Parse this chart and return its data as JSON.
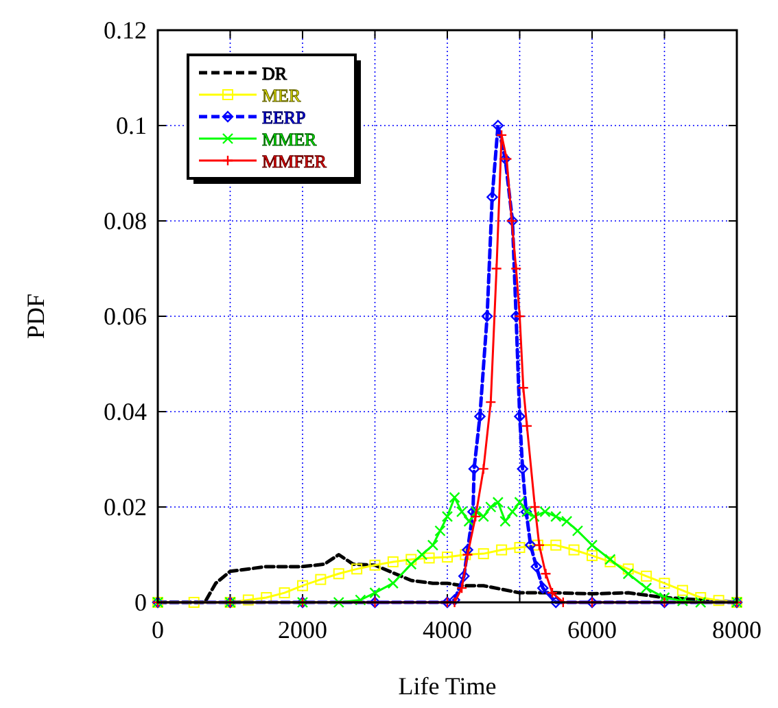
{
  "chart_data": {
    "type": "line",
    "xlabel": "Life Time",
    "ylabel": "PDF",
    "xlim": [
      0,
      8000
    ],
    "ylim": [
      0,
      0.12
    ],
    "xticks": [
      0,
      {
        "value": 1000,
        "label": null
      },
      2000,
      {
        "value": 3000,
        "label": null
      },
      4000,
      {
        "value": 5000,
        "label": null
      },
      6000,
      {
        "value": 7000,
        "label": null
      },
      8000
    ],
    "yticks": [
      0,
      0.02,
      0.04,
      0.06,
      0.08,
      0.1,
      0.12
    ],
    "grid": true,
    "legend": "top left",
    "series": [
      {
        "name": "DR",
        "color": "#000000",
        "marker": "none",
        "line_style": "dashed",
        "x": [
          0,
          500,
          650,
          800,
          1000,
          1500,
          2000,
          2300,
          2500,
          2700,
          3000,
          3500,
          3800,
          4000,
          4200,
          4500,
          5000,
          5500,
          6000,
          6500,
          7000,
          7500,
          8000
        ],
        "values": [
          0,
          0,
          0,
          0.004,
          0.0065,
          0.0075,
          0.0075,
          0.008,
          0.01,
          0.008,
          0.0078,
          0.0046,
          0.004,
          0.004,
          0.0035,
          0.0035,
          0.002,
          0.002,
          0.0018,
          0.002,
          0.001,
          0.0005,
          0
        ]
      },
      {
        "name": "MER",
        "color": "#ffff00",
        "marker": "square",
        "line_style": "solid",
        "x": [
          0,
          500,
          1000,
          1250,
          1500,
          1750,
          2000,
          2250,
          2500,
          2750,
          3000,
          3250,
          3500,
          3750,
          4000,
          4250,
          4500,
          4750,
          5000,
          5250,
          5500,
          5750,
          6000,
          6250,
          6500,
          6750,
          7000,
          7250,
          7500,
          7750,
          8000
        ],
        "values": [
          0,
          0,
          0,
          0.0005,
          0.001,
          0.002,
          0.0035,
          0.0048,
          0.006,
          0.007,
          0.0078,
          0.0085,
          0.009,
          0.0093,
          0.0095,
          0.01,
          0.0102,
          0.011,
          0.0115,
          0.012,
          0.012,
          0.011,
          0.0098,
          0.0085,
          0.007,
          0.0055,
          0.004,
          0.0025,
          0.001,
          0.0004,
          0
        ]
      },
      {
        "name": "EERP",
        "color": "#0000ff",
        "marker": "diamond",
        "line_style": "dashed",
        "x": [
          0,
          1000,
          2000,
          3000,
          4000,
          4100,
          4230,
          4280,
          4355,
          4370,
          4450,
          4550,
          4620,
          4700,
          4800,
          4900,
          4950,
          5000,
          5040,
          5090,
          5150,
          5230,
          5320,
          5500,
          6000,
          7000,
          8000
        ],
        "values": [
          0,
          0,
          0,
          0,
          0,
          0.0005,
          0.0055,
          0.011,
          0.019,
          0.028,
          0.039,
          0.06,
          0.085,
          0.1,
          0.093,
          0.08,
          0.06,
          0.039,
          0.028,
          0.019,
          0.012,
          0.0075,
          0.003,
          0,
          0,
          0,
          0
        ]
      },
      {
        "name": "MMER",
        "color": "#00ff00",
        "marker": "cross",
        "line_style": "solid",
        "x": [
          0,
          1000,
          2000,
          2500,
          2800,
          3000,
          3250,
          3500,
          3650,
          3800,
          3900,
          4000,
          4100,
          4200,
          4300,
          4400,
          4500,
          4600,
          4700,
          4800,
          4900,
          5000,
          5100,
          5200,
          5350,
          5500,
          5650,
          5800,
          6000,
          6250,
          6500,
          6750,
          7000,
          7250,
          7500,
          8000
        ],
        "values": [
          0,
          0,
          0,
          0,
          0.0005,
          0.002,
          0.004,
          0.008,
          0.01,
          0.012,
          0.015,
          0.018,
          0.022,
          0.019,
          0.017,
          0.019,
          0.018,
          0.02,
          0.021,
          0.017,
          0.019,
          0.021,
          0.019,
          0.018,
          0.019,
          0.018,
          0.017,
          0.015,
          0.012,
          0.009,
          0.006,
          0.003,
          0.001,
          0.0003,
          0,
          0
        ]
      },
      {
        "name": "MMFER",
        "color": "#ff0000",
        "marker": "plus",
        "line_style": "solid",
        "x": [
          0,
          1000,
          2000,
          3000,
          4000,
          4100,
          4200,
          4280,
          4390,
          4500,
          4600,
          4680,
          4750,
          4820,
          4890,
          4950,
          5000,
          5050,
          5100,
          5210,
          5270,
          5360,
          5450,
          5600,
          6000,
          7000,
          8000
        ],
        "values": [
          0,
          0,
          0,
          0,
          0,
          0,
          0.003,
          0.01,
          0.018,
          0.028,
          0.042,
          0.07,
          0.098,
          0.093,
          0.08,
          0.07,
          0.06,
          0.045,
          0.037,
          0.02,
          0.012,
          0.006,
          0.002,
          0,
          0,
          0,
          0
        ]
      }
    ]
  }
}
